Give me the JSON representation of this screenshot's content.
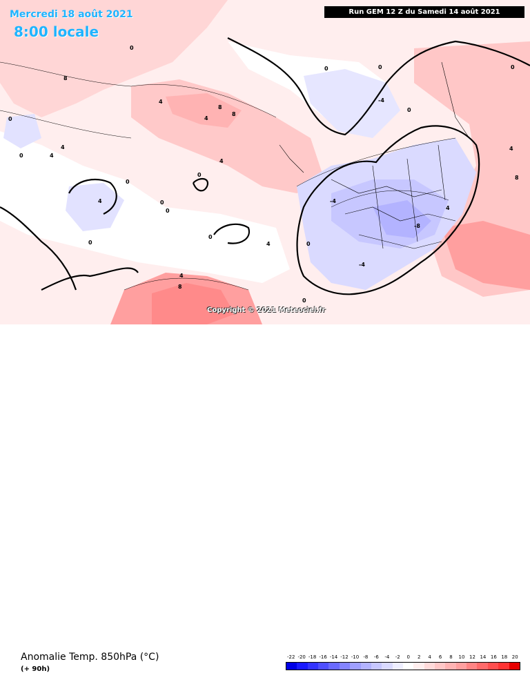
{
  "header": {
    "date": "Mercredi 18 août 2021",
    "time": "8:00 locale",
    "run": "Run GEM 12 Z du Samedi 14 août 2021"
  },
  "copyright": "Copyright © 2021 Meteociel.fr",
  "footer": {
    "title": "Anomalie Temp. 850hPa (°C)",
    "subtitle": "(+ 90h)"
  },
  "legend": {
    "ticks": [
      "-22",
      "-20",
      "-18",
      "-16",
      "-14",
      "-12",
      "-10",
      "-8",
      "-6",
      "-4",
      "-2",
      "0",
      "2",
      "4",
      "6",
      "8",
      "10",
      "12",
      "14",
      "16",
      "18",
      "20"
    ],
    "colors": [
      "#0000e6",
      "#1a1aff",
      "#3434ff",
      "#4f4fff",
      "#6a6aff",
      "#8484ff",
      "#9f9fff",
      "#b3b3ff",
      "#c7c7ff",
      "#dadaff",
      "#eeeeff",
      "#ffffff",
      "#ffeeee",
      "#ffdada",
      "#ffc7c7",
      "#ffb3b3",
      "#ff9f9f",
      "#ff8484",
      "#ff6a6a",
      "#ff4f4f",
      "#ff3434",
      "#e60000"
    ]
  },
  "contour_labels": [
    {
      "t": "0"
    },
    {
      "t": "8"
    },
    {
      "t": "4"
    },
    {
      "t": "0"
    },
    {
      "t": "4"
    },
    {
      "t": "8"
    },
    {
      "t": "0"
    },
    {
      "t": "4"
    },
    {
      "t": "0"
    },
    {
      "t": "4"
    },
    {
      "t": "-4"
    },
    {
      "t": "0"
    },
    {
      "t": "-4"
    },
    {
      "t": "-8"
    },
    {
      "t": "0"
    },
    {
      "t": "4"
    },
    {
      "t": "8"
    },
    {
      "t": "0"
    },
    {
      "t": "4"
    },
    {
      "t": "0"
    },
    {
      "t": "0"
    },
    {
      "t": "0"
    },
    {
      "t": "0"
    },
    {
      "t": "4"
    },
    {
      "t": "8"
    },
    {
      "t": "4"
    },
    {
      "t": "0"
    },
    {
      "t": "-4"
    },
    {
      "t": "0"
    },
    {
      "t": "4"
    },
    {
      "t": "0"
    },
    {
      "t": "8"
    },
    {
      "t": "4"
    },
    {
      "t": "0"
    }
  ]
}
